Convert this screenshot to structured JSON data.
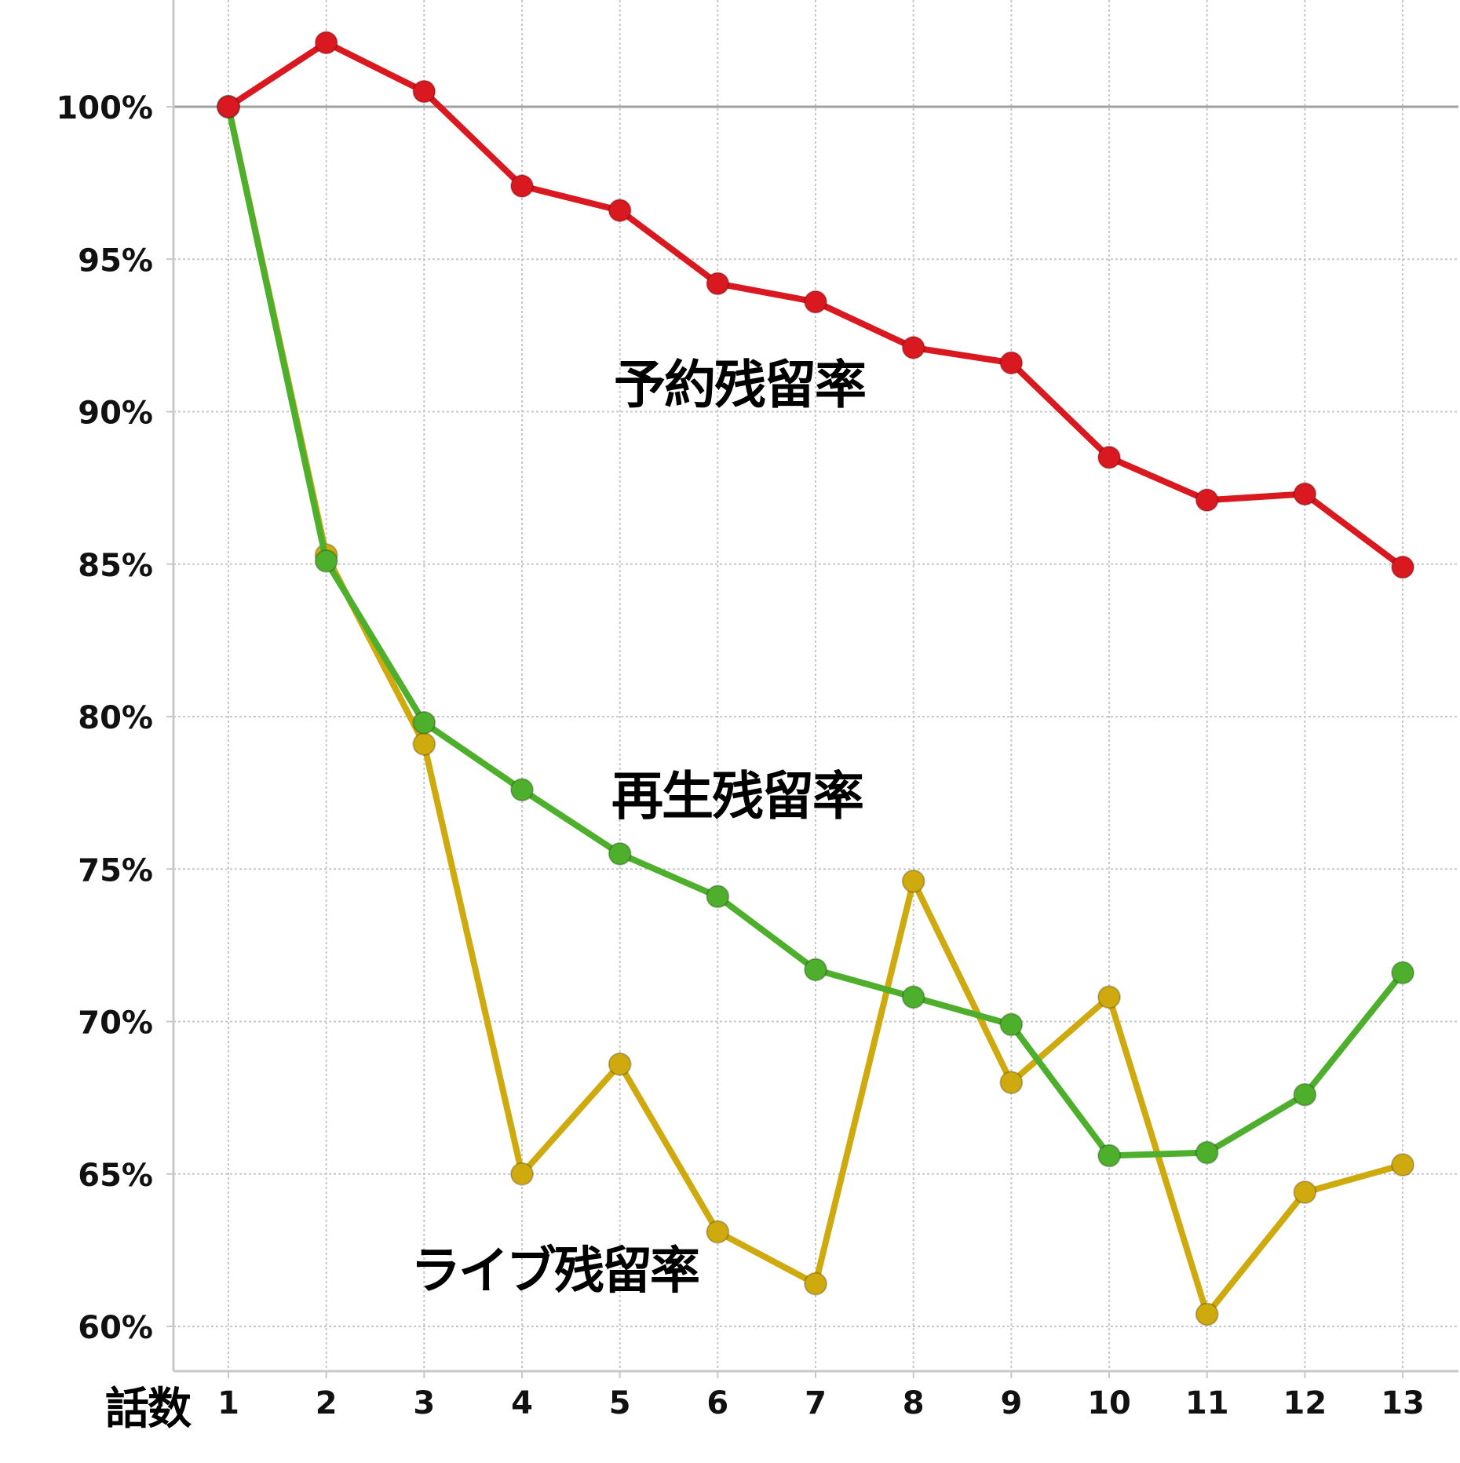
{
  "chart_data": {
    "type": "line",
    "title": "",
    "xlabel": "話数",
    "ylabel": "",
    "categories": [
      "1",
      "2",
      "3",
      "4",
      "5",
      "6",
      "7",
      "8",
      "9",
      "10",
      "11",
      "12",
      "13"
    ],
    "x": [
      1,
      2,
      3,
      4,
      5,
      6,
      7,
      8,
      9,
      10,
      11,
      12,
      13
    ],
    "ylim": [
      60,
      100
    ],
    "yticks": [
      100,
      95,
      90,
      85,
      80,
      75,
      70,
      65,
      60
    ],
    "ytick_labels": [
      "100%",
      "95%",
      "90%",
      "85%",
      "80%",
      "75%",
      "70%",
      "65%",
      "60%"
    ],
    "grid": true,
    "reference_line": 100,
    "legend_position": "inline annotations",
    "series": [
      {
        "name": "ライブ残留率",
        "color": "#cfaa0e",
        "values": [
          100,
          85.3,
          79.1,
          65.0,
          68.6,
          63.1,
          61.4,
          74.6,
          68.0,
          70.8,
          60.4,
          64.4,
          65.3
        ]
      },
      {
        "name": "再生残留率",
        "color": "#4daf2b",
        "values": [
          100,
          85.1,
          79.8,
          77.6,
          75.5,
          74.1,
          71.7,
          70.8,
          69.9,
          65.6,
          65.7,
          67.6,
          71.6
        ]
      },
      {
        "name": "予約残留率",
        "color": "#d9181f",
        "values": [
          100,
          102.1,
          100.5,
          97.4,
          96.6,
          94.2,
          93.6,
          92.1,
          91.6,
          88.5,
          87.1,
          87.3,
          84.9
        ]
      }
    ],
    "annotations": [
      {
        "text": "予約残留率",
        "series": "予約残留率"
      },
      {
        "text": "再生残留率",
        "series": "再生残留率"
      },
      {
        "text": "ライブ残留率",
        "series": "ライブ残留率"
      }
    ]
  },
  "labels": {
    "reservation": "予約残留率",
    "playback": "再生残留率",
    "live": "ライブ残留率",
    "x_axis_title": "話数"
  },
  "colors": {
    "grid": "#c8c8c8",
    "axis": "#c8c8c8",
    "reference_line": "#a0a0a0",
    "text": "#111111"
  }
}
